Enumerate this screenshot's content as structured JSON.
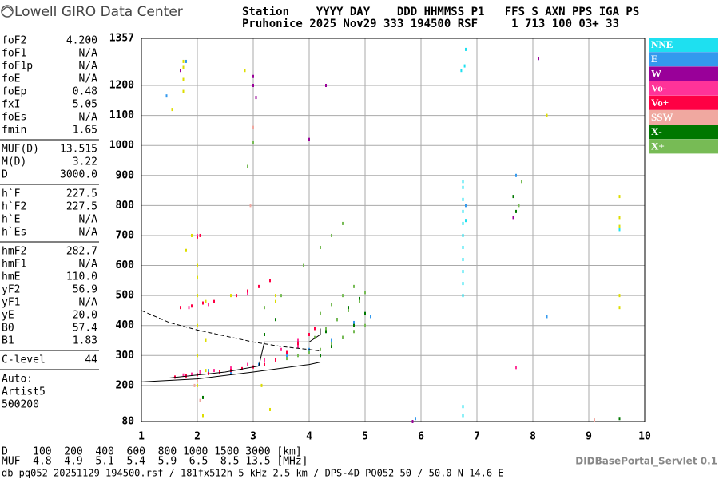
{
  "header": {
    "logo": "Lowell GIRO Data Center",
    "line1": "Station    YYYY DAY    DDD HHMMSS P1   FFS S AXN PPS IGA PS",
    "line2": "Pruhonice 2025 Nov29 333 194500 RSF     1 713 100 03+ 33"
  },
  "params": [
    [
      [
        "foF2",
        "4.200"
      ],
      [
        "foF1",
        "N/A"
      ],
      [
        "foF1p",
        "N/A"
      ],
      [
        "foE",
        "N/A"
      ],
      [
        "foEp",
        "0.48"
      ],
      [
        "fxI",
        "5.05"
      ],
      [
        "foEs",
        "N/A"
      ],
      [
        "fmin",
        "1.65"
      ]
    ],
    [
      [
        "MUF(D)",
        "13.515"
      ],
      [
        "M(D)",
        "3.22"
      ],
      [
        "D",
        "3000.0"
      ]
    ],
    [
      [
        "h`F",
        "227.5"
      ],
      [
        "h`F2",
        "227.5"
      ],
      [
        "h`E",
        "N/A"
      ],
      [
        "h`Es",
        "N/A"
      ]
    ],
    [
      [
        "hmF2",
        "282.7"
      ],
      [
        "hmF1",
        "N/A"
      ],
      [
        "hmE",
        "110.0"
      ],
      [
        "yF2",
        "56.9"
      ],
      [
        "yF1",
        "N/A"
      ],
      [
        "yE",
        "20.0"
      ],
      [
        "B0",
        "57.4"
      ],
      [
        "B1",
        "1.83"
      ]
    ],
    [
      [
        "C-level",
        "44"
      ]
    ],
    [
      [
        "Auto:"
      ],
      [
        "Artist5"
      ],
      [
        "500200"
      ]
    ]
  ],
  "footer": {
    "distance_row": "D    100  200  400  600  800 1000 1500 3000 [km]",
    "muf_row": "MUF  4.8  4.9  5.1  5.4  5.9  6.5  8.5 13.5 [MHz]",
    "db_line": "db pq052 20251129 194500.rsf / 181fx512h 5 kHz 2.5 km / DPS-4D PQ052 50 / 50.0 N 14.6 E",
    "servlet": "DIDBasePortal_Servlet 0.1"
  },
  "chart_data": {
    "type": "scatter",
    "xlim": [
      1,
      10
    ],
    "xticks": [
      1,
      2,
      3,
      4,
      5,
      6,
      7,
      8,
      9,
      10
    ],
    "ylim": [
      80,
      1357
    ],
    "yticks": [
      80,
      200,
      300,
      400,
      500,
      600,
      700,
      800,
      900,
      1000,
      1100,
      1200,
      1357
    ],
    "grid": true,
    "series": [
      {
        "name": "NNE",
        "color": "#1ee0f0",
        "x": [
          6.75,
          6.75,
          6.75,
          6.75,
          6.75,
          6.75,
          6.75,
          6.75,
          6.75,
          6.75,
          6.75,
          6.72,
          6.78,
          6.8,
          6.8,
          9.55,
          9.55,
          6.75,
          6.75
        ],
        "values": [
          500,
          540,
          580,
          620,
          660,
          700,
          740,
          780,
          820,
          860,
          880,
          1250,
          1265,
          1320,
          750,
          720,
          730,
          100,
          130
        ]
      },
      {
        "name": "E",
        "color": "#3399ee",
        "x": [
          1.45,
          1.8,
          2.2,
          2.6,
          3.1,
          3.6,
          4.0,
          4.4,
          4.8,
          5.1,
          6.8,
          7.7,
          8.25,
          5.9,
          8.1
        ],
        "values": [
          1165,
          1280,
          250,
          240,
          270,
          300,
          320,
          350,
          410,
          430,
          800,
          900,
          430,
          90,
          1290
        ]
      },
      {
        "name": "W",
        "color": "#990099",
        "x": [
          3.0,
          3.0,
          3.05,
          4.0,
          7.65,
          8.1,
          5.85,
          4.3,
          1.7
        ],
        "values": [
          1200,
          1230,
          1160,
          1020,
          760,
          1290,
          80,
          1200,
          1250
        ]
      },
      {
        "name": "Vo-",
        "color": "#ff3399",
        "x": [
          1.75,
          1.9,
          2.05,
          2.3,
          2.6,
          2.9,
          3.2,
          3.5,
          3.8,
          2.0,
          2.2,
          1.85,
          2.9,
          3.8,
          7.7
        ],
        "values": [
          235,
          238,
          245,
          250,
          258,
          270,
          285,
          320,
          350,
          700,
          470,
          460,
          505,
          330,
          260
        ]
      },
      {
        "name": "Vo+",
        "color": "#ff0044",
        "x": [
          1.6,
          1.8,
          2.0,
          2.2,
          2.4,
          2.6,
          2.8,
          3.0,
          3.2,
          3.4,
          3.6,
          3.8,
          4.0,
          4.1,
          1.7,
          1.9,
          2.1,
          2.3,
          2.7,
          2.9,
          3.1,
          3.3,
          2.0,
          2.05
        ],
        "values": [
          228,
          232,
          236,
          240,
          245,
          250,
          256,
          262,
          270,
          285,
          310,
          340,
          370,
          390,
          460,
          465,
          475,
          480,
          500,
          515,
          530,
          550,
          695,
          700
        ]
      },
      {
        "name": "SSW",
        "color": "#f0a8a0",
        "x": [
          1.95,
          2.0,
          2.05,
          2.95,
          3.0,
          9.1
        ],
        "values": [
          200,
          215,
          150,
          800,
          1060,
          85
        ]
      },
      {
        "name": "X-",
        "color": "#007700",
        "x": [
          4.2,
          4.4,
          4.6,
          4.8,
          5.0,
          4.3,
          4.5,
          4.7,
          4.9,
          3.2,
          3.4,
          7.7,
          7.65,
          2.1,
          9.55
        ],
        "values": [
          300,
          330,
          360,
          400,
          440,
          380,
          420,
          460,
          490,
          370,
          420,
          780,
          830,
          160,
          90
        ]
      },
      {
        "name": "X+",
        "color": "#77bb55",
        "x": [
          3.6,
          3.8,
          4.0,
          4.2,
          4.4,
          4.6,
          4.8,
          5.0,
          4.1,
          4.3,
          4.5,
          4.7,
          4.9,
          5.0,
          4.2,
          4.4,
          4.6,
          4.8,
          2.9,
          3.0,
          3.2,
          3.5,
          3.9,
          4.2,
          4.4,
          4.6,
          7.75,
          7.8
        ],
        "values": [
          290,
          300,
          310,
          320,
          340,
          360,
          380,
          400,
          360,
          390,
          420,
          450,
          480,
          510,
          440,
          470,
          500,
          530,
          930,
          1010,
          460,
          500,
          600,
          660,
          700,
          740,
          800,
          880
        ]
      },
      {
        "color": "#dddd00",
        "x": [
          1.75,
          1.75,
          1.75,
          1.75,
          2.0,
          2.0,
          2.0,
          2.0,
          2.0,
          2.0,
          2.15,
          2.15,
          2.15,
          1.9,
          3.4,
          3.4,
          3.15,
          3.3,
          9.55,
          9.55,
          9.55,
          9.55,
          9.55,
          1.55,
          8.25,
          2.85,
          2.6,
          1.8,
          2.1
        ],
        "values": [
          1180,
          1220,
          1260,
          1280,
          200,
          300,
          400,
          500,
          560,
          600,
          250,
          350,
          480,
          700,
          480,
          500,
          200,
          120,
          460,
          500,
          730,
          760,
          830,
          1120,
          1100,
          1250,
          500,
          650,
          100
        ]
      }
    ],
    "traces": [
      {
        "style": "dashed",
        "x": [
          1.0,
          1.5,
          2.0,
          2.5,
          3.0,
          3.5,
          4.0,
          4.2
        ],
        "values": [
          450,
          410,
          385,
          365,
          345,
          330,
          320,
          315
        ]
      },
      {
        "style": "solid",
        "x": [
          1.0,
          2.0,
          3.0,
          4.0,
          4.2
        ],
        "values": [
          212,
          222,
          245,
          270,
          278
        ]
      },
      {
        "style": "solid",
        "x": [
          1.5,
          2.5,
          3.1,
          3.2,
          4.0,
          4.2,
          4.2
        ],
        "values": [
          225,
          245,
          265,
          345,
          345,
          370,
          390
        ]
      }
    ]
  }
}
